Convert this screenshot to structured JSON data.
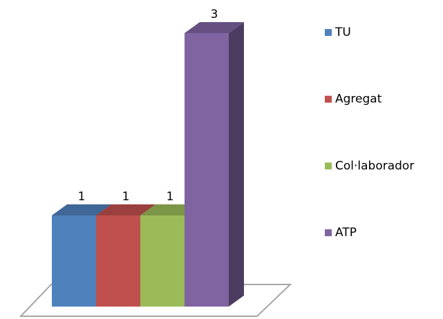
{
  "chart_data": {
    "type": "bar",
    "series": [
      {
        "name": "TU",
        "color": "#4f81bd",
        "values": [
          1
        ]
      },
      {
        "name": "Agregat",
        "color": "#c0504d",
        "values": [
          1
        ]
      },
      {
        "name": "Col·laborador",
        "color": "#9bbb59",
        "values": [
          1
        ]
      },
      {
        "name": "ATP",
        "color": "#8064a2",
        "values": [
          3
        ]
      }
    ],
    "legend": "right"
  }
}
